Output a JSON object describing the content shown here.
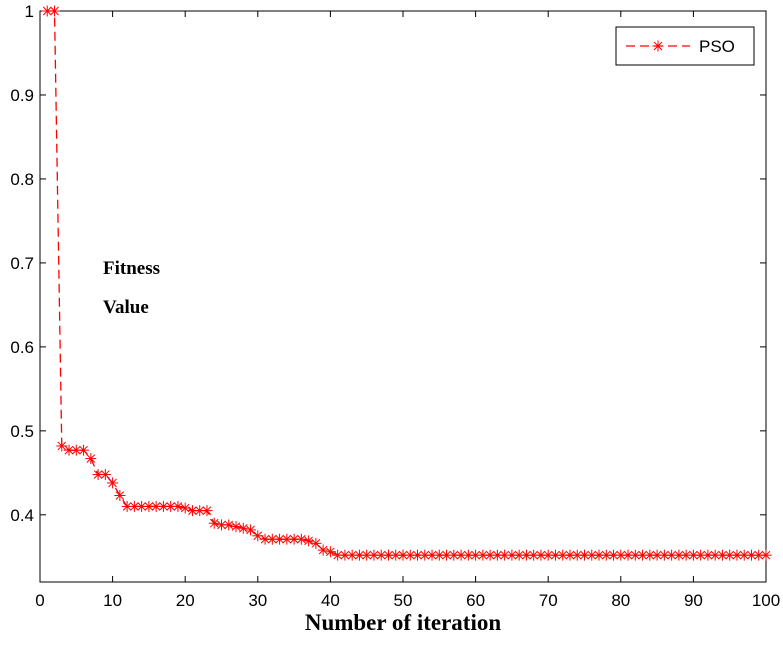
{
  "chart_data": {
    "type": "line",
    "xlabel": "Number of iteration",
    "ylabel_lines": [
      "Fitness",
      "Value"
    ],
    "xlim": [
      0,
      100
    ],
    "ylim": [
      0.32,
      1.0
    ],
    "xticks": [
      "0",
      "10",
      "20",
      "30",
      "40",
      "50",
      "60",
      "70",
      "80",
      "90",
      "100"
    ],
    "yticks": [
      "0.4",
      "0.5",
      "0.6",
      "0.7",
      "0.8",
      "0.9",
      "1"
    ],
    "grid": false,
    "legend_position": "top-right",
    "series": [
      {
        "name": "PSO",
        "color": "#ff0000",
        "line_style": "dashed",
        "marker": "asterisk",
        "x": [
          1,
          2,
          3,
          4,
          5,
          6,
          7,
          8,
          9,
          10,
          11,
          12,
          13,
          14,
          15,
          16,
          17,
          18,
          19,
          20,
          21,
          22,
          23,
          24,
          25,
          26,
          27,
          28,
          29,
          30,
          31,
          32,
          33,
          34,
          35,
          36,
          37,
          38,
          39,
          40,
          41,
          42,
          43,
          44,
          45,
          46,
          47,
          48,
          49,
          50,
          51,
          52,
          53,
          54,
          55,
          56,
          57,
          58,
          59,
          60,
          61,
          62,
          63,
          64,
          65,
          66,
          67,
          68,
          69,
          70,
          71,
          72,
          73,
          74,
          75,
          76,
          77,
          78,
          79,
          80,
          81,
          82,
          83,
          84,
          85,
          86,
          87,
          88,
          89,
          90,
          91,
          92,
          93,
          94,
          95,
          96,
          97,
          98,
          99,
          100
        ],
        "y": [
          1.0,
          1.0,
          0.482,
          0.477,
          0.477,
          0.477,
          0.467,
          0.448,
          0.448,
          0.438,
          0.423,
          0.41,
          0.41,
          0.41,
          0.41,
          0.41,
          0.41,
          0.41,
          0.41,
          0.408,
          0.405,
          0.405,
          0.405,
          0.39,
          0.388,
          0.388,
          0.386,
          0.384,
          0.382,
          0.375,
          0.371,
          0.371,
          0.371,
          0.371,
          0.371,
          0.371,
          0.369,
          0.366,
          0.358,
          0.356,
          0.352,
          0.352,
          0.352,
          0.352,
          0.352,
          0.352,
          0.352,
          0.352,
          0.352,
          0.352,
          0.352,
          0.352,
          0.352,
          0.352,
          0.352,
          0.352,
          0.352,
          0.352,
          0.352,
          0.352,
          0.352,
          0.352,
          0.352,
          0.352,
          0.352,
          0.352,
          0.352,
          0.352,
          0.352,
          0.352,
          0.352,
          0.352,
          0.352,
          0.352,
          0.352,
          0.352,
          0.352,
          0.352,
          0.352,
          0.352,
          0.352,
          0.352,
          0.352,
          0.352,
          0.352,
          0.352,
          0.352,
          0.352,
          0.352,
          0.352,
          0.352,
          0.352,
          0.352,
          0.352,
          0.352,
          0.352,
          0.352,
          0.352,
          0.352,
          0.352
        ]
      }
    ]
  }
}
